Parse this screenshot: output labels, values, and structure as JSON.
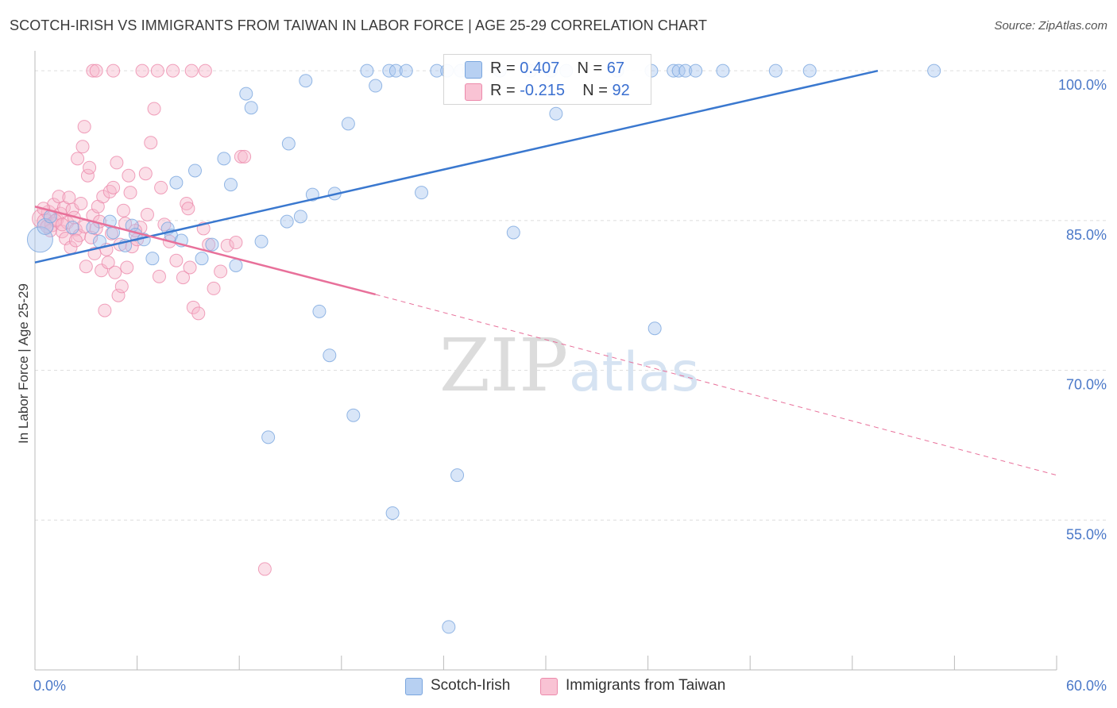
{
  "title": "SCOTCH-IRISH VS IMMIGRANTS FROM TAIWAN IN LABOR FORCE | AGE 25-29 CORRELATION CHART",
  "source": "Source: ZipAtlas.com",
  "watermark": {
    "zip": "ZIP",
    "atlas": "atlas"
  },
  "legend": {
    "r_label": "R =",
    "n_label": "N =",
    "series": [
      {
        "r": "0.407",
        "n": "67"
      },
      {
        "r": "-0.215",
        "n": "92"
      }
    ]
  },
  "bottom_legend": [
    "Scotch-Irish",
    "Immigrants from Taiwan"
  ],
  "colors": {
    "blue_fill": "#aac8f0",
    "blue_stroke": "#7aa6de",
    "blue_line": "#3a78cf",
    "pink_fill": "#f7b8cc",
    "pink_stroke": "#ec8aab",
    "pink_line": "#e8709a",
    "tick_text": "#4a78c8",
    "grid": "#dddddd"
  },
  "chart_data": {
    "type": "scatter",
    "xlabel": "",
    "ylabel": "In Labor Force | Age 25-29",
    "xlim": [
      0,
      60
    ],
    "ylim": [
      40,
      102
    ],
    "x_tick_labels": [
      {
        "value": 0,
        "label": "0.0%"
      },
      {
        "value": 60,
        "label": "60.0%"
      }
    ],
    "y_ticks": [
      {
        "value": 100,
        "label": "100.0%"
      },
      {
        "value": 85,
        "label": "85.0%"
      },
      {
        "value": 70,
        "label": "70.0%"
      },
      {
        "value": 55,
        "label": "55.0%"
      }
    ],
    "grid": "horizontal dashed",
    "series": [
      {
        "name": "Scotch-Irish",
        "trend": {
          "x": [
            0,
            49.5
          ],
          "y": [
            80.8,
            100
          ]
        },
        "points": [
          [
            0.3,
            83.1,
            16
          ],
          [
            0.6,
            84.4,
            10
          ],
          [
            0.9,
            85.4,
            8
          ],
          [
            2.2,
            84.3,
            8
          ],
          [
            3.4,
            84.3,
            8
          ],
          [
            3.8,
            82.9,
            8
          ],
          [
            4.4,
            84.9,
            8
          ],
          [
            4.6,
            83.8,
            8
          ],
          [
            5.3,
            82.5,
            8
          ],
          [
            5.7,
            84.5,
            8
          ],
          [
            5.9,
            83.6,
            8
          ],
          [
            6.4,
            83.1,
            8
          ],
          [
            6.9,
            81.2,
            8
          ],
          [
            7.8,
            84.2,
            8
          ],
          [
            8.0,
            83.5,
            8
          ],
          [
            8.3,
            88.8,
            8
          ],
          [
            8.6,
            83.0,
            8
          ],
          [
            9.4,
            90.0,
            8
          ],
          [
            9.8,
            81.2,
            8
          ],
          [
            10.4,
            82.6,
            8
          ],
          [
            11.1,
            91.2,
            8
          ],
          [
            11.5,
            88.6,
            8
          ],
          [
            11.8,
            80.5,
            8
          ],
          [
            12.4,
            97.7,
            8
          ],
          [
            12.7,
            96.3,
            8
          ],
          [
            13.3,
            82.9,
            8
          ],
          [
            14.8,
            84.9,
            8
          ],
          [
            14.9,
            92.7,
            8
          ],
          [
            15.6,
            85.4,
            8
          ],
          [
            15.9,
            99.0,
            8
          ],
          [
            16.3,
            87.6,
            8
          ],
          [
            16.7,
            75.9,
            8
          ],
          [
            17.3,
            71.5,
            8
          ],
          [
            17.6,
            87.7,
            8
          ],
          [
            18.4,
            94.7,
            8
          ],
          [
            18.7,
            65.5,
            8
          ],
          [
            19.5,
            100,
            8
          ],
          [
            20.0,
            98.5,
            8
          ],
          [
            20.8,
            100,
            8
          ],
          [
            21.2,
            100,
            8
          ],
          [
            21.8,
            100,
            8
          ],
          [
            22.7,
            87.8,
            8
          ],
          [
            23.6,
            100,
            8
          ],
          [
            24.2,
            100,
            8
          ],
          [
            24.8,
            59.5,
            8
          ],
          [
            25.0,
            100,
            8
          ],
          [
            25.5,
            100,
            8
          ],
          [
            27.3,
            100,
            8
          ],
          [
            28.1,
            83.8,
            8
          ],
          [
            29.1,
            100,
            8
          ],
          [
            30.3,
            100,
            8
          ],
          [
            30.6,
            95.7,
            8
          ],
          [
            31.2,
            100,
            8
          ],
          [
            34.2,
            100,
            8
          ],
          [
            36.2,
            100,
            8
          ],
          [
            36.4,
            74.2,
            8
          ],
          [
            37.5,
            100,
            8
          ],
          [
            37.8,
            100,
            8
          ],
          [
            38.2,
            100,
            8
          ],
          [
            38.8,
            100,
            8
          ],
          [
            40.4,
            100,
            8
          ],
          [
            43.5,
            100,
            8
          ],
          [
            45.5,
            100,
            8
          ],
          [
            52.8,
            100,
            8
          ],
          [
            13.7,
            63.3,
            8
          ],
          [
            21.0,
            55.7,
            8
          ],
          [
            24.3,
            44.3,
            8
          ]
        ]
      },
      {
        "name": "Immigrants from Taiwan",
        "trend": {
          "x": [
            0,
            20
          ],
          "y": [
            86.4,
            77.6
          ]
        },
        "trend_dashed": {
          "x": [
            20,
            60
          ],
          "y": [
            77.6,
            59.5
          ]
        },
        "points": [
          [
            0.4,
            85.2,
            12
          ],
          [
            0.6,
            84.9,
            10
          ],
          [
            0.8,
            85.8,
            9
          ],
          [
            1.0,
            84.6,
            9
          ],
          [
            1.1,
            86.6,
            8
          ],
          [
            1.3,
            85.1,
            8
          ],
          [
            1.4,
            87.4,
            8
          ],
          [
            1.5,
            85.7,
            8
          ],
          [
            1.6,
            83.9,
            8
          ],
          [
            1.7,
            86.3,
            8
          ],
          [
            1.8,
            83.2,
            8
          ],
          [
            1.9,
            84.8,
            8
          ],
          [
            2.0,
            87.3,
            8
          ],
          [
            2.1,
            82.3,
            8
          ],
          [
            2.2,
            86.1,
            8
          ],
          [
            2.3,
            85.3,
            8
          ],
          [
            2.4,
            84.1,
            8
          ],
          [
            2.5,
            91.2,
            8
          ],
          [
            2.6,
            83.5,
            8
          ],
          [
            2.7,
            86.7,
            8
          ],
          [
            2.8,
            92.4,
            8
          ],
          [
            2.9,
            84.4,
            8
          ],
          [
            3.0,
            80.4,
            8
          ],
          [
            3.1,
            89.5,
            8
          ],
          [
            3.2,
            90.3,
            8
          ],
          [
            3.3,
            83.3,
            8
          ],
          [
            3.4,
            85.5,
            8
          ],
          [
            3.5,
            81.7,
            8
          ],
          [
            3.6,
            84.2,
            8
          ],
          [
            3.7,
            86.4,
            8
          ],
          [
            3.8,
            84.9,
            8
          ],
          [
            3.9,
            80.0,
            8
          ],
          [
            4.0,
            87.4,
            8
          ],
          [
            4.1,
            76.0,
            8
          ],
          [
            4.2,
            82.1,
            8
          ],
          [
            4.3,
            80.8,
            8
          ],
          [
            4.4,
            87.9,
            8
          ],
          [
            4.5,
            83.7,
            8
          ],
          [
            4.6,
            88.3,
            8
          ],
          [
            4.7,
            79.8,
            8
          ],
          [
            4.8,
            90.8,
            8
          ],
          [
            4.9,
            77.5,
            8
          ],
          [
            5.0,
            82.6,
            8
          ],
          [
            5.1,
            78.4,
            8
          ],
          [
            5.2,
            86.0,
            8
          ],
          [
            5.3,
            84.7,
            8
          ],
          [
            5.4,
            80.3,
            8
          ],
          [
            5.5,
            89.5,
            8
          ],
          [
            5.6,
            87.8,
            8
          ],
          [
            5.7,
            82.4,
            8
          ],
          [
            6.0,
            83.1,
            8
          ],
          [
            6.2,
            84.3,
            8
          ],
          [
            6.5,
            89.7,
            8
          ],
          [
            6.8,
            92.8,
            8
          ],
          [
            7.0,
            96.2,
            8
          ],
          [
            7.3,
            79.4,
            8
          ],
          [
            7.6,
            84.6,
            8
          ],
          [
            7.9,
            82.9,
            8
          ],
          [
            8.3,
            81.0,
            8
          ],
          [
            8.7,
            79.3,
            8
          ],
          [
            8.9,
            86.7,
            8
          ],
          [
            9.1,
            80.3,
            8
          ],
          [
            9.3,
            76.3,
            8
          ],
          [
            9.6,
            75.7,
            8
          ],
          [
            9.9,
            84.2,
            8
          ],
          [
            10.2,
            82.6,
            8
          ],
          [
            10.5,
            78.2,
            8
          ],
          [
            10.9,
            79.9,
            8
          ],
          [
            11.3,
            82.5,
            8
          ],
          [
            11.8,
            82.8,
            8
          ],
          [
            12.1,
            91.4,
            8
          ],
          [
            12.3,
            91.4,
            8
          ],
          [
            13.5,
            50.1,
            8
          ],
          [
            3.4,
            100,
            8
          ],
          [
            3.6,
            100,
            8
          ],
          [
            4.6,
            100,
            8
          ],
          [
            6.3,
            100,
            8
          ],
          [
            7.2,
            100,
            8
          ],
          [
            8.1,
            100,
            8
          ],
          [
            9.2,
            100,
            8
          ],
          [
            10.0,
            100,
            8
          ],
          [
            2.9,
            94.4,
            8
          ],
          [
            0.5,
            86.2,
            8
          ],
          [
            0.9,
            84.0,
            8
          ],
          [
            1.2,
            85.0,
            8
          ],
          [
            6.6,
            85.6,
            8
          ],
          [
            7.4,
            88.3,
            8
          ],
          [
            5.9,
            84.0,
            8
          ],
          [
            9.0,
            86.2,
            8
          ],
          [
            0.7,
            84.4,
            8
          ],
          [
            1.6,
            84.6,
            8
          ],
          [
            2.4,
            83.0,
            8
          ]
        ]
      }
    ]
  }
}
